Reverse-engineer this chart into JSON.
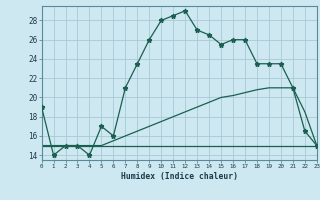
{
  "xlabel": "Humidex (Indice chaleur)",
  "background_color": "#cde8f0",
  "grid_color": "#a8c8d8",
  "line_color": "#1a5f50",
  "x": [
    0,
    1,
    2,
    3,
    4,
    5,
    6,
    7,
    8,
    9,
    10,
    11,
    12,
    13,
    14,
    15,
    16,
    17,
    18,
    19,
    20,
    21,
    22,
    23
  ],
  "line1": [
    19,
    14,
    15,
    15,
    14,
    17,
    16,
    21,
    23.5,
    26,
    28,
    28.5,
    29,
    27,
    26.5,
    25.5,
    26,
    26,
    23.5,
    23.5,
    23.5,
    21,
    16.5,
    15
  ],
  "line2": [
    15,
    15,
    15,
    15,
    15,
    15,
    15,
    15,
    15,
    15,
    15,
    15,
    15,
    15,
    15,
    15,
    15,
    15,
    15,
    15,
    15,
    15,
    15,
    15
  ],
  "line3": [
    15,
    15,
    15,
    15,
    15,
    15,
    15.5,
    16,
    16.5,
    17,
    17.5,
    18,
    18.5,
    19,
    19.5,
    20,
    20.2,
    20.5,
    20.8,
    21,
    21,
    21,
    18.5,
    15
  ],
  "xlim": [
    0,
    23
  ],
  "ylim": [
    13.5,
    29.5
  ],
  "yticks": [
    14,
    16,
    18,
    20,
    22,
    24,
    26,
    28
  ],
  "xticks": [
    0,
    1,
    2,
    3,
    4,
    5,
    6,
    7,
    8,
    9,
    10,
    11,
    12,
    13,
    14,
    15,
    16,
    17,
    18,
    19,
    20,
    21,
    22,
    23
  ]
}
